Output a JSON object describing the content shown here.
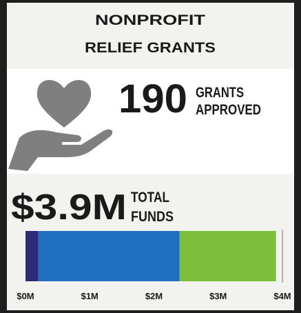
{
  "header": {
    "title": [
      "NONPROFIT",
      "RELIEF GRANTS"
    ]
  },
  "grants": {
    "value": "190",
    "label": [
      "GRANTS",
      "APPROVED"
    ]
  },
  "funds": {
    "value": "$3.9M",
    "label": [
      "TOTAL",
      "FUNDS"
    ]
  },
  "chart_data": {
    "type": "bar",
    "orientation": "horizontal",
    "stacked": true,
    "series": [
      {
        "color": "#2e2a78",
        "values": [
          0.2
        ]
      },
      {
        "color": "#1f6ec0",
        "values": [
          2.2
        ]
      },
      {
        "color": "#7bbf3a",
        "values": [
          1.5
        ]
      }
    ],
    "xlim": [
      0,
      4
    ],
    "xticks": [
      {
        "value": 0,
        "label": "$0M"
      },
      {
        "value": 1,
        "label": "$1M"
      },
      {
        "value": 2,
        "label": "$2M"
      },
      {
        "value": 3,
        "label": "$3M"
      },
      {
        "value": 4,
        "label": "$4M"
      }
    ]
  }
}
